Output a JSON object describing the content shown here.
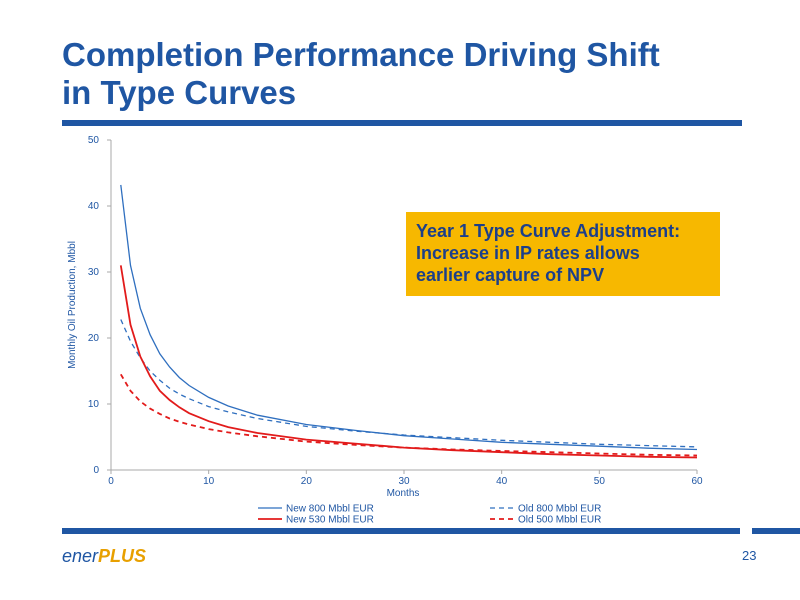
{
  "slide": {
    "title_line1": "Completion Performance Driving Shift",
    "title_line2": "in Type Curves",
    "callout_line1": "Year 1 Type Curve Adjustment:",
    "callout_line2": "Increase in IP rates allows",
    "callout_line3": "earlier capture of NPV",
    "logo_ener": "ener",
    "logo_plus": "PLUS",
    "page_number": "23"
  },
  "colors": {
    "brand_blue": "#1f56a3",
    "callout_fill": "#f7b800",
    "series_blue": "#2f6fbf",
    "series_red": "#e21b1b"
  },
  "chart_data": {
    "type": "line",
    "title": "",
    "xlabel": "Months",
    "ylabel": "Monthly Oil Production, Mbbl",
    "xlim": [
      0,
      60
    ],
    "ylim": [
      0,
      50
    ],
    "xticks": [
      0,
      10,
      20,
      30,
      40,
      50,
      60
    ],
    "yticks": [
      0,
      10,
      20,
      30,
      40,
      50
    ],
    "grid": false,
    "legend_position": "bottom",
    "x": [
      1,
      2,
      3,
      4,
      5,
      6,
      7,
      8,
      10,
      12,
      15,
      20,
      25,
      30,
      35,
      40,
      45,
      50,
      55,
      60
    ],
    "series": [
      {
        "name": "New 800 Mbbl EUR",
        "style": "solid",
        "color": "#2f6fbf",
        "values": [
          43.2,
          31.0,
          24.5,
          20.5,
          17.6,
          15.6,
          14.0,
          12.8,
          11.0,
          9.7,
          8.3,
          6.9,
          6.0,
          5.2,
          4.7,
          4.2,
          3.9,
          3.6,
          3.3,
          3.1
        ]
      },
      {
        "name": "Old 800 Mbbl EUR",
        "style": "dashed",
        "color": "#2f6fbf",
        "values": [
          22.8,
          19.5,
          17.0,
          15.0,
          13.6,
          12.4,
          11.5,
          10.8,
          9.6,
          8.8,
          7.8,
          6.6,
          5.9,
          5.3,
          4.9,
          4.5,
          4.2,
          3.9,
          3.7,
          3.5
        ]
      },
      {
        "name": "New 530 Mbbl EUR",
        "style": "solid",
        "color": "#e21b1b",
        "values": [
          31.0,
          22.0,
          17.2,
          14.2,
          12.0,
          10.6,
          9.5,
          8.6,
          7.4,
          6.5,
          5.6,
          4.6,
          4.0,
          3.4,
          3.0,
          2.7,
          2.4,
          2.2,
          2.0,
          1.9
        ]
      },
      {
        "name": "Old 500 Mbbl EUR",
        "style": "dashed",
        "color": "#e21b1b",
        "values": [
          14.5,
          12.0,
          10.4,
          9.3,
          8.5,
          7.8,
          7.3,
          6.9,
          6.2,
          5.7,
          5.1,
          4.3,
          3.8,
          3.4,
          3.1,
          2.9,
          2.7,
          2.5,
          2.3,
          2.2
        ]
      }
    ]
  }
}
